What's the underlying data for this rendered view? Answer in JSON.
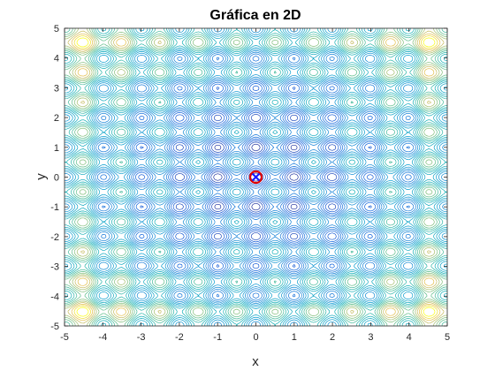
{
  "chart_data": {
    "type": "contour",
    "title": "Gráfica en 2D",
    "xlabel": "x",
    "ylabel": "y",
    "xlim": [
      -5,
      5
    ],
    "ylim": [
      -5,
      5
    ],
    "xticks": [
      -5,
      -4,
      -3,
      -2,
      -1,
      0,
      1,
      2,
      3,
      4,
      5
    ],
    "yticks": [
      -5,
      -4,
      -3,
      -2,
      -1,
      0,
      1,
      2,
      3,
      4,
      5
    ],
    "grid": false,
    "colormap": "parula",
    "function": "Rastrigin",
    "marked_point": {
      "x": 0,
      "y": 0,
      "marker": "circle-with-x"
    }
  },
  "colors": {
    "marker_circle": "#e00000",
    "marker_x": "#1a1aff",
    "axes": "#262626"
  }
}
